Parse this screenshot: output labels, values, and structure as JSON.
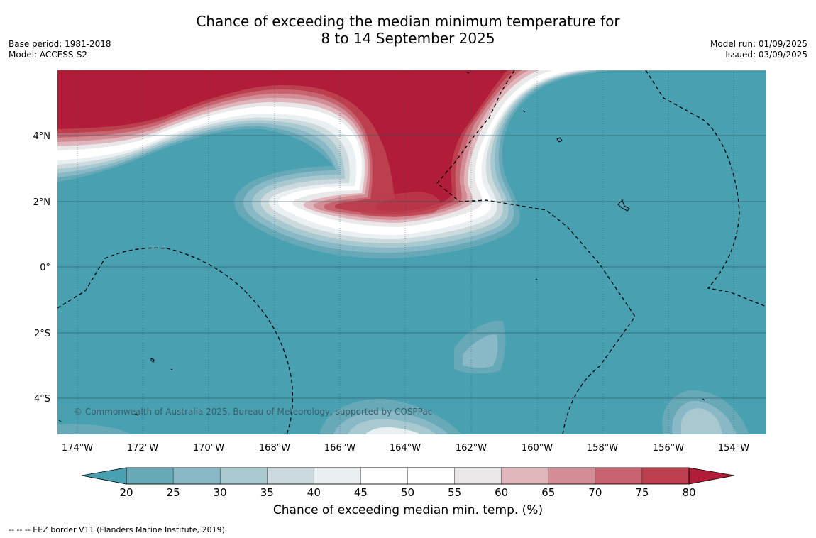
{
  "title_line1": "Chance of exceeding the median minimum temperature for",
  "title_line2": "8 to 14 September 2025",
  "meta_left": [
    "Base period: 1981-2018",
    "Model: ACCESS-S2"
  ],
  "meta_right": [
    "Model run: 01/09/2025",
    "Issued: 03/09/2025"
  ],
  "copyright": "© Commonwealth of Australia 2025, Bureau of Meteorology, supported by COSPPac",
  "lon_labels": [
    "174°W",
    "172°W",
    "170°W",
    "168°W",
    "166°W",
    "164°W",
    "162°W",
    "160°W",
    "158°W",
    "156°W",
    "154°W"
  ],
  "lat_labels": [
    "4°N",
    "2°N",
    "0°",
    "2°S",
    "4°S"
  ],
  "colorbar": {
    "label": "Chance of exceeding median min. temp. (%)",
    "ticks": [
      "20",
      "25",
      "30",
      "35",
      "40",
      "45",
      "50",
      "55",
      "60",
      "65",
      "70",
      "75",
      "80"
    ],
    "colors": [
      "#68a9b8",
      "#89b9c6",
      "#a9c9d0",
      "#ccdadd",
      "#eaf0f1",
      "#ffffff",
      "#ffffff",
      "#ebe8e9",
      "#e0b5bb",
      "#d38d95",
      "#c8646f",
      "#bc3f4e"
    ],
    "under_color": "#48a0b1",
    "over_color": "#b11c38"
  },
  "footnote": "--  --  -- EEZ border V11 (Flanders Marine Institute, 2019).",
  "colors": {
    "ocean_base": "#48a0b1",
    "warm_core": "#b11c38",
    "grid": "#2b5561"
  }
}
